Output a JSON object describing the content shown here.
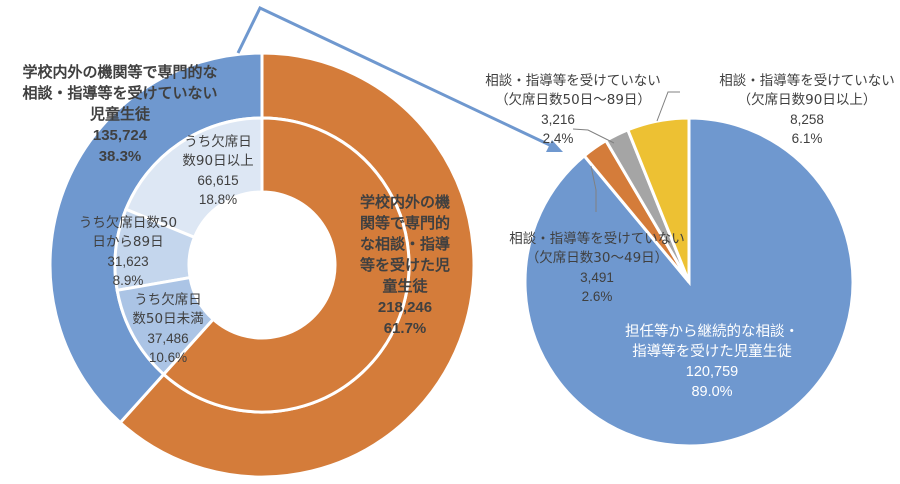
{
  "colors": {
    "blue": "#6F98CF",
    "orange": "#D47C3A",
    "gray": "#A5A5A5",
    "yellow": "#EDC133",
    "inner_light1": "#DDE7F4",
    "inner_light2": "#C4D6ED",
    "inner_light3": "#ABC4E5",
    "arrow": "#6F98CF",
    "text": "#404040"
  },
  "left_donut": {
    "outer": {
      "received": {
        "label_lines": [
          "学校内外の機",
          "関等で専門的",
          "な相談・指導",
          "等を受けた児",
          "童生徒"
        ],
        "value": "218,246",
        "percent": "61.7%"
      },
      "not_received": {
        "label_lines": [
          "学校内外の機関等で専門的な",
          "相談・指導等を受けていない",
          "児童生徒"
        ],
        "value": "135,724",
        "percent": "38.3%"
      }
    },
    "inner": [
      {
        "label_lines": [
          "うち欠席日",
          "数90日以上"
        ],
        "value": "66,615",
        "percent": "18.8%"
      },
      {
        "label_lines": [
          "うち欠席日数50",
          "日から89日"
        ],
        "value": "31,623",
        "percent": "8.9%"
      },
      {
        "label_lines": [
          "うち欠席日",
          "数50日未満"
        ],
        "value": "37,486",
        "percent": "10.6%"
      }
    ]
  },
  "right_pie": {
    "main": {
      "label_lines": [
        "担任等から継続的な相談・",
        "指導等を受けた児童生徒"
      ],
      "value": "120,759",
      "percent": "89.0%"
    },
    "d30_49": {
      "label_lines": [
        "相談・指導等を受けていない",
        "（欠席日数30～49日）"
      ],
      "value": "3,491",
      "percent": "2.6%"
    },
    "d50_89": {
      "label_lines": [
        "相談・指導等を受けていない",
        "（欠席日数50日～89日）"
      ],
      "value": "3,216",
      "percent": "2.4%"
    },
    "d90plus": {
      "label_lines": [
        "相談・指導等を受けていない",
        "（欠席日数90日以上）"
      ],
      "value": "8,258",
      "percent": "6.1%"
    }
  },
  "chart_data": [
    {
      "type": "pie",
      "subtype": "donut-nested",
      "title": "",
      "series": [
        {
          "name": "outer",
          "categories": [
            "学校内外の機関等で専門的な相談・指導等を受けた児童生徒",
            "学校内外の機関等で専門的な相談・指導等を受けていない児童生徒"
          ],
          "values": [
            218246,
            135724
          ],
          "percents": [
            61.7,
            38.3
          ]
        },
        {
          "name": "inner (breakdown of not received)",
          "categories": [
            "うち欠席日数90日以上",
            "うち欠席日数50日から89日",
            "うち欠席日数50日未満"
          ],
          "values": [
            66615,
            31623,
            37486
          ],
          "percents": [
            18.8,
            8.9,
            10.6
          ]
        }
      ]
    },
    {
      "type": "pie",
      "title": "",
      "categories": [
        "担任等から継続的な相談・指導等を受けた児童生徒",
        "相談・指導等を受けていない（欠席日数30～49日）",
        "相談・指導等を受けていない（欠席日数50日～89日）",
        "相談・指導等を受けていない（欠席日数90日以上）"
      ],
      "values": [
        120759,
        3491,
        3216,
        8258
      ],
      "percents": [
        89.0,
        2.6,
        2.4,
        6.1
      ]
    }
  ]
}
